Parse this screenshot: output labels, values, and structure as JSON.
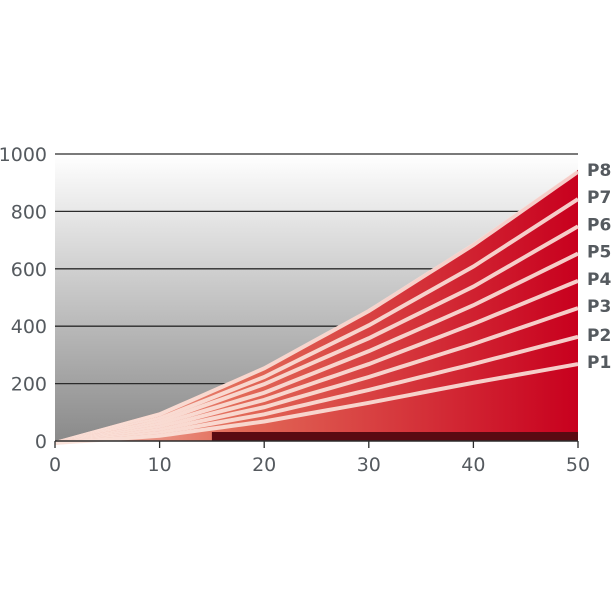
{
  "chart_data": {
    "type": "area",
    "title": "",
    "xlabel": "",
    "ylabel": "",
    "xlim": [
      0,
      50
    ],
    "ylim": [
      0,
      1000
    ],
    "x_ticks": [
      "0",
      "10",
      "20",
      "30",
      "40",
      "50"
    ],
    "y_ticks": [
      "0",
      "200",
      "400",
      "600",
      "800",
      "1000"
    ],
    "grid": true,
    "legend": "right-edge labels",
    "colors": {
      "fill": "#c8001e",
      "dark_band": "#5a0a12",
      "background_top": "#ffffff",
      "background_bottom": "#8c8c8c"
    },
    "x": [
      0,
      10,
      20,
      30,
      40,
      50
    ],
    "series": [
      {
        "name": "P1",
        "values": [
          0,
          25,
          75,
          140,
          210,
          275
        ]
      },
      {
        "name": "P2",
        "values": [
          0,
          35,
          100,
          185,
          275,
          370
        ]
      },
      {
        "name": "P3",
        "values": [
          0,
          45,
          125,
          230,
          345,
          470
        ]
      },
      {
        "name": "P4",
        "values": [
          0,
          55,
          150,
          275,
          415,
          565
        ]
      },
      {
        "name": "P5",
        "values": [
          0,
          65,
          175,
          320,
          480,
          660
        ]
      },
      {
        "name": "P6",
        "values": [
          0,
          75,
          205,
          365,
          545,
          755
        ]
      },
      {
        "name": "P7",
        "values": [
          0,
          85,
          230,
          410,
          615,
          850
        ]
      },
      {
        "name": "P8",
        "values": [
          0,
          100,
          260,
          460,
          690,
          945
        ]
      }
    ]
  }
}
